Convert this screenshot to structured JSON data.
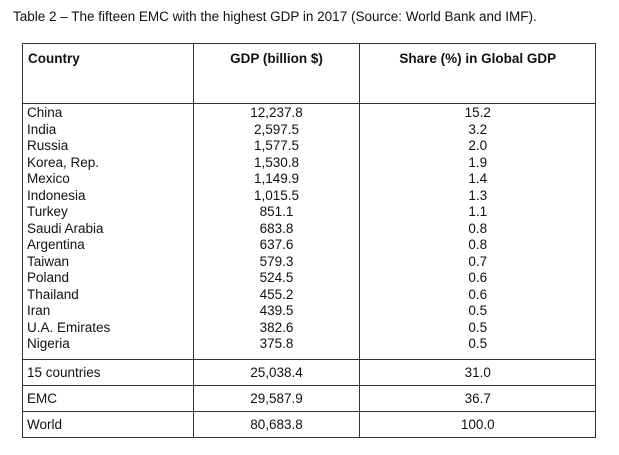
{
  "caption": "Table 2 – The fifteen EMC with the highest GDP in 2017 (Source: World Bank and IMF).",
  "headers": [
    "Country",
    "GDP (billion $)",
    "Share (%) in Global GDP"
  ],
  "rows": [
    {
      "country": "China",
      "gdp": "12,237.8",
      "share": "15.2"
    },
    {
      "country": "India",
      "gdp": "2,597.5",
      "share": "3.2"
    },
    {
      "country": "Russia",
      "gdp": "1,577.5",
      "share": "2.0"
    },
    {
      "country": "Korea, Rep.",
      "gdp": "1,530.8",
      "share": "1.9"
    },
    {
      "country": "Mexico",
      "gdp": "1,149.9",
      "share": "1.4"
    },
    {
      "country": "Indonesia",
      "gdp": "1,015.5",
      "share": "1.3"
    },
    {
      "country": "Turkey",
      "gdp": "851.1",
      "share": "1.1"
    },
    {
      "country": "Saudi Arabia",
      "gdp": "683.8",
      "share": "0.8"
    },
    {
      "country": "Argentina",
      "gdp": "637.6",
      "share": "0.8"
    },
    {
      "country": "Taiwan",
      "gdp": "579.3",
      "share": "0.7"
    },
    {
      "country": "Poland",
      "gdp": "524.5",
      "share": "0.6"
    },
    {
      "country": "Thailand",
      "gdp": "455.2",
      "share": "0.6"
    },
    {
      "country": "Iran",
      "gdp": "439.5",
      "share": "0.5"
    },
    {
      "country": "U.A. Emirates",
      "gdp": "382.6",
      "share": "0.5"
    },
    {
      "country": "Nigeria",
      "gdp": "375.8",
      "share": "0.5"
    }
  ],
  "totals": [
    {
      "label": "15 countries",
      "gdp": "25,038.4",
      "share": "31.0"
    },
    {
      "label": "EMC",
      "gdp": "29,587.9",
      "share": "36.7"
    },
    {
      "label": "World",
      "gdp": "80,683.8",
      "share": "100.0"
    }
  ]
}
